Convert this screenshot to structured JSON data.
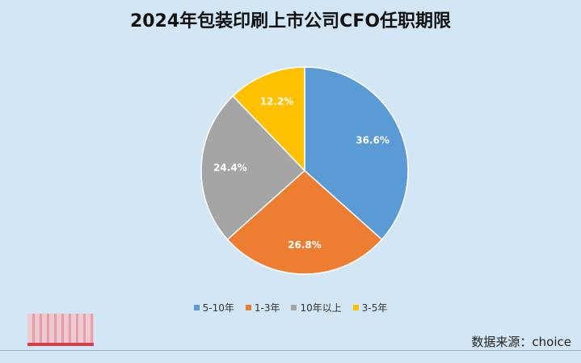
{
  "chart_data": {
    "type": "pie",
    "title": "2024年包装印刷上市公司CFO任职期限",
    "categories": [
      "5-10年",
      "1-3年",
      "10年以上",
      "3-5年"
    ],
    "values": [
      36.6,
      26.8,
      24.4,
      12.2
    ],
    "labels": [
      "36.6%",
      "26.8%",
      "24.4%",
      "12.2%"
    ],
    "colors": [
      "#5b9bd5",
      "#ed7d31",
      "#a5a5a5",
      "#ffc000"
    ],
    "legend": "bottom"
  },
  "source": "数据来源：choice",
  "logo_icon": "red-logo-watermark"
}
